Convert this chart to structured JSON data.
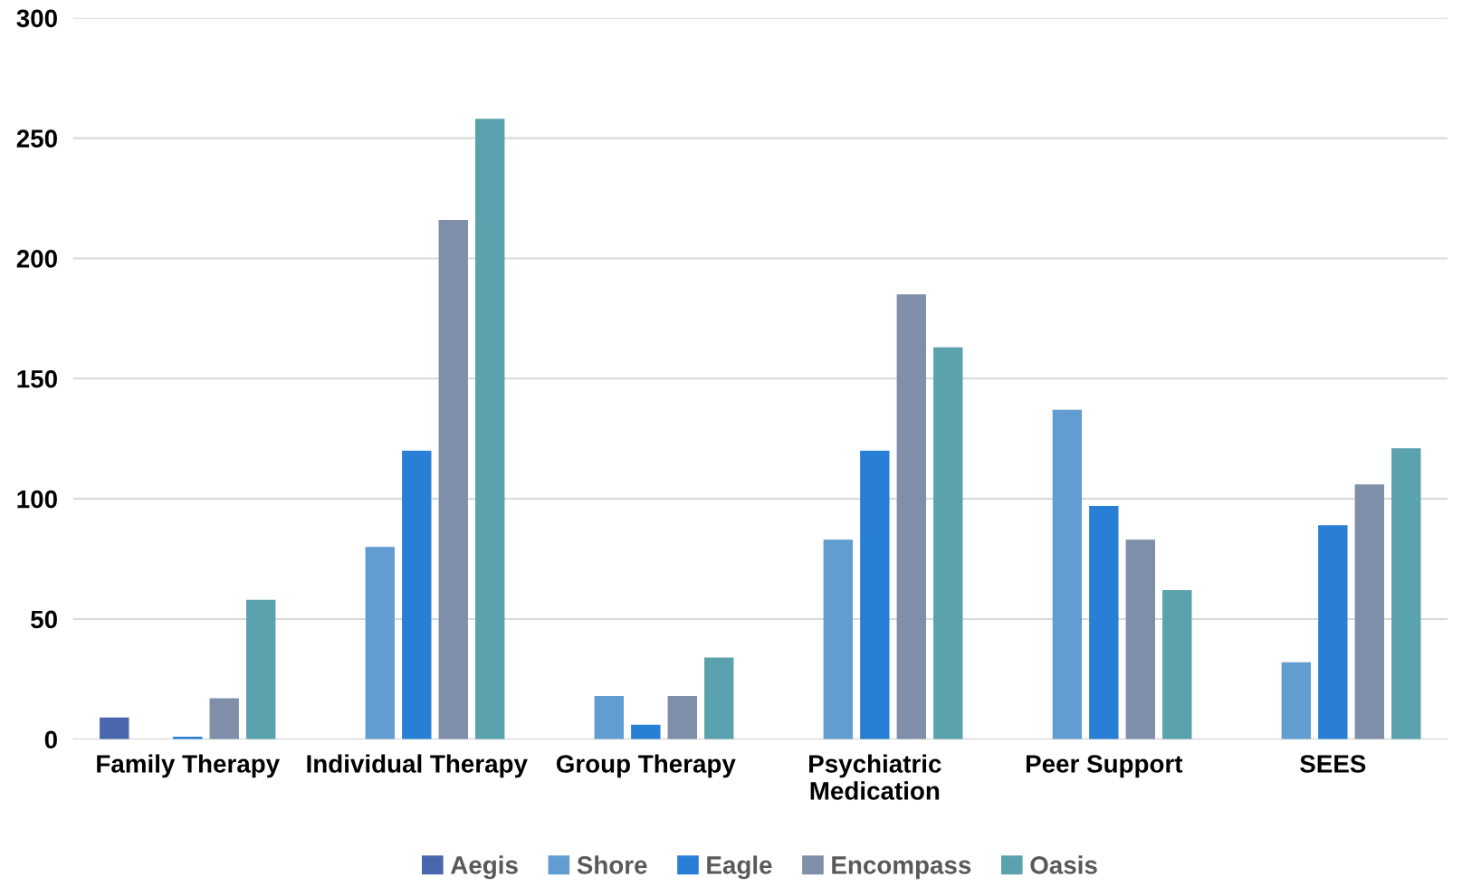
{
  "chart_data": {
    "type": "bar",
    "categories": [
      "Family Therapy",
      "Individual Therapy",
      "Group Therapy",
      "Psychiatric\nMedication",
      "Peer Support",
      "SEES"
    ],
    "series": [
      {
        "name": "Aegis",
        "color": "#4a66ac",
        "values": [
          9,
          null,
          null,
          null,
          null,
          null
        ]
      },
      {
        "name": "Shore",
        "color": "#629dd1",
        "values": [
          null,
          80,
          18,
          83,
          137,
          32
        ]
      },
      {
        "name": "Eagle",
        "color": "#297fd5",
        "values": [
          1,
          120,
          6,
          120,
          97,
          89
        ]
      },
      {
        "name": "Encompass",
        "color": "#7f8fa9",
        "values": [
          17,
          216,
          18,
          185,
          83,
          106
        ]
      },
      {
        "name": "Oasis",
        "color": "#5aa2ae",
        "values": [
          58,
          258,
          34,
          163,
          62,
          121
        ]
      }
    ],
    "ylim": [
      0,
      300
    ],
    "yticks": [
      0,
      50,
      100,
      150,
      200,
      250,
      300
    ],
    "grid": "y",
    "legend": "bottom"
  }
}
